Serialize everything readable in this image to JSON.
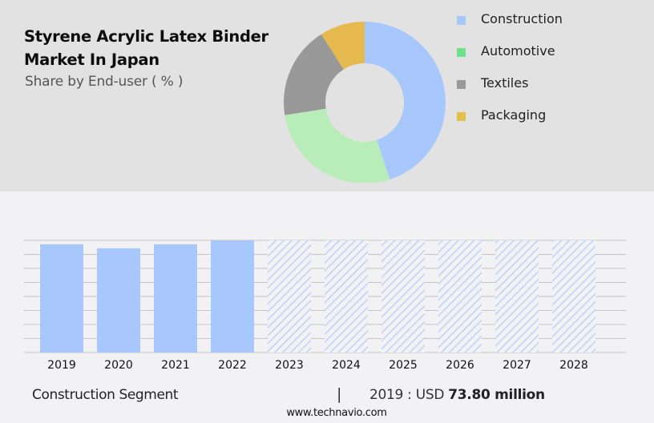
{
  "header": {
    "title_line1": "Styrene Acrylic Latex Binder",
    "title_line2": "Market In Japan",
    "subtitle": "Share by End-user ( % )"
  },
  "legend": {
    "items": [
      {
        "label": "Construction",
        "color": "#a8c8fd"
      },
      {
        "label": "Automotive",
        "color": "#6de08c"
      },
      {
        "label": "Textiles",
        "color": "#999999"
      },
      {
        "label": "Packaging",
        "color": "#e2c04b"
      }
    ]
  },
  "footer": {
    "segment_label": "Construction Segment",
    "separator": "|",
    "year_prefix": "2019 : USD ",
    "value_text": "73.80 million",
    "url": "www.technavio.com"
  },
  "chart_data": [
    {
      "type": "pie",
      "variant": "donut",
      "title": "Styrene Acrylic Latex Binder Market In Japan",
      "subtitle": "Share by End-user ( % )",
      "categories": [
        "Construction",
        "Automotive",
        "Textiles",
        "Packaging"
      ],
      "values": [
        45,
        27.5,
        18.5,
        9
      ],
      "colors": [
        "#a8c8fd",
        "#b8edb9",
        "#999999",
        "#e6b94f"
      ],
      "legend_position": "right"
    },
    {
      "type": "bar",
      "title": "Construction Segment",
      "categories": [
        "2019",
        "2020",
        "2021",
        "2022",
        "2023",
        "2024",
        "2025",
        "2026",
        "2027",
        "2028"
      ],
      "values": [
        73.8,
        71.1,
        73.8,
        76.5,
        76.5,
        76.5,
        76.5,
        76.5,
        76.5,
        76.5
      ],
      "forecast_from": "2023",
      "forecast_style": "hatched",
      "unit": "USD million",
      "xlabel": "",
      "ylabel": "",
      "grid": true,
      "annotation": "2019 : USD 73.80 million",
      "color": "#a8c8fd"
    }
  ]
}
